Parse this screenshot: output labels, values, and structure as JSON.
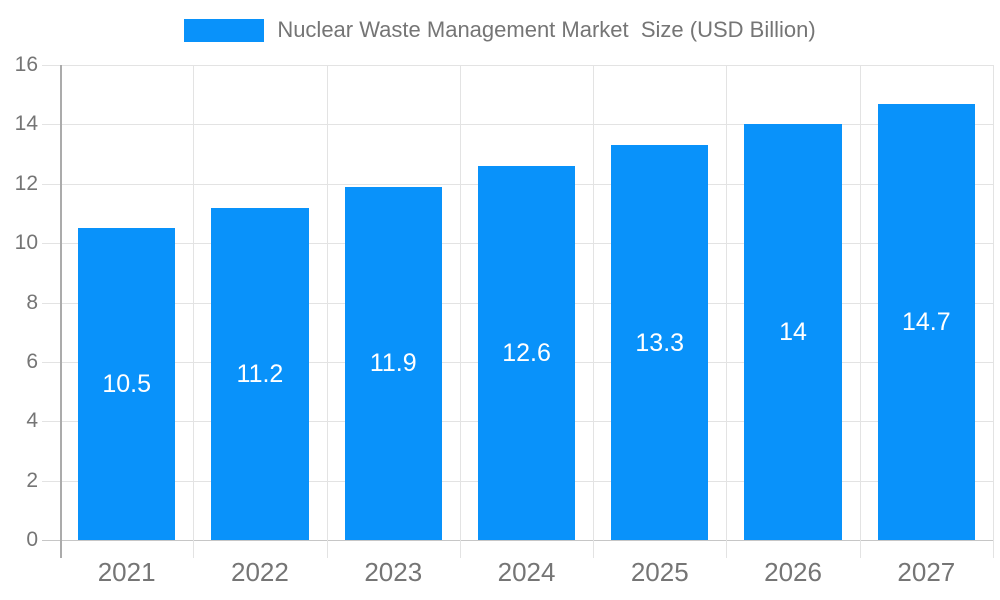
{
  "chart_data": {
    "type": "bar",
    "title": "Nuclear Waste Management Market  Size (USD Billion)",
    "categories": [
      "2021",
      "2022",
      "2023",
      "2024",
      "2025",
      "2026",
      "2027"
    ],
    "values": [
      10.5,
      11.2,
      11.9,
      12.6,
      13.3,
      14,
      14.7
    ],
    "value_labels": [
      "10.5",
      "11.2",
      "11.9",
      "12.6",
      "13.3",
      "14",
      "14.7"
    ],
    "xlabel": "",
    "ylabel": "",
    "y_ticks": [
      0,
      2,
      4,
      6,
      8,
      10,
      12,
      14,
      16
    ],
    "ylim": [
      0,
      16
    ],
    "grid": true,
    "legend_position": "top",
    "colors": {
      "bar": "#0992FA",
      "grid": "#E3E3E3",
      "axis": "#ABABAB",
      "baseline": "#C6C6C6",
      "text": "#757575",
      "bar_label": "#FFFFFF",
      "background": "#FFFFFF"
    }
  }
}
